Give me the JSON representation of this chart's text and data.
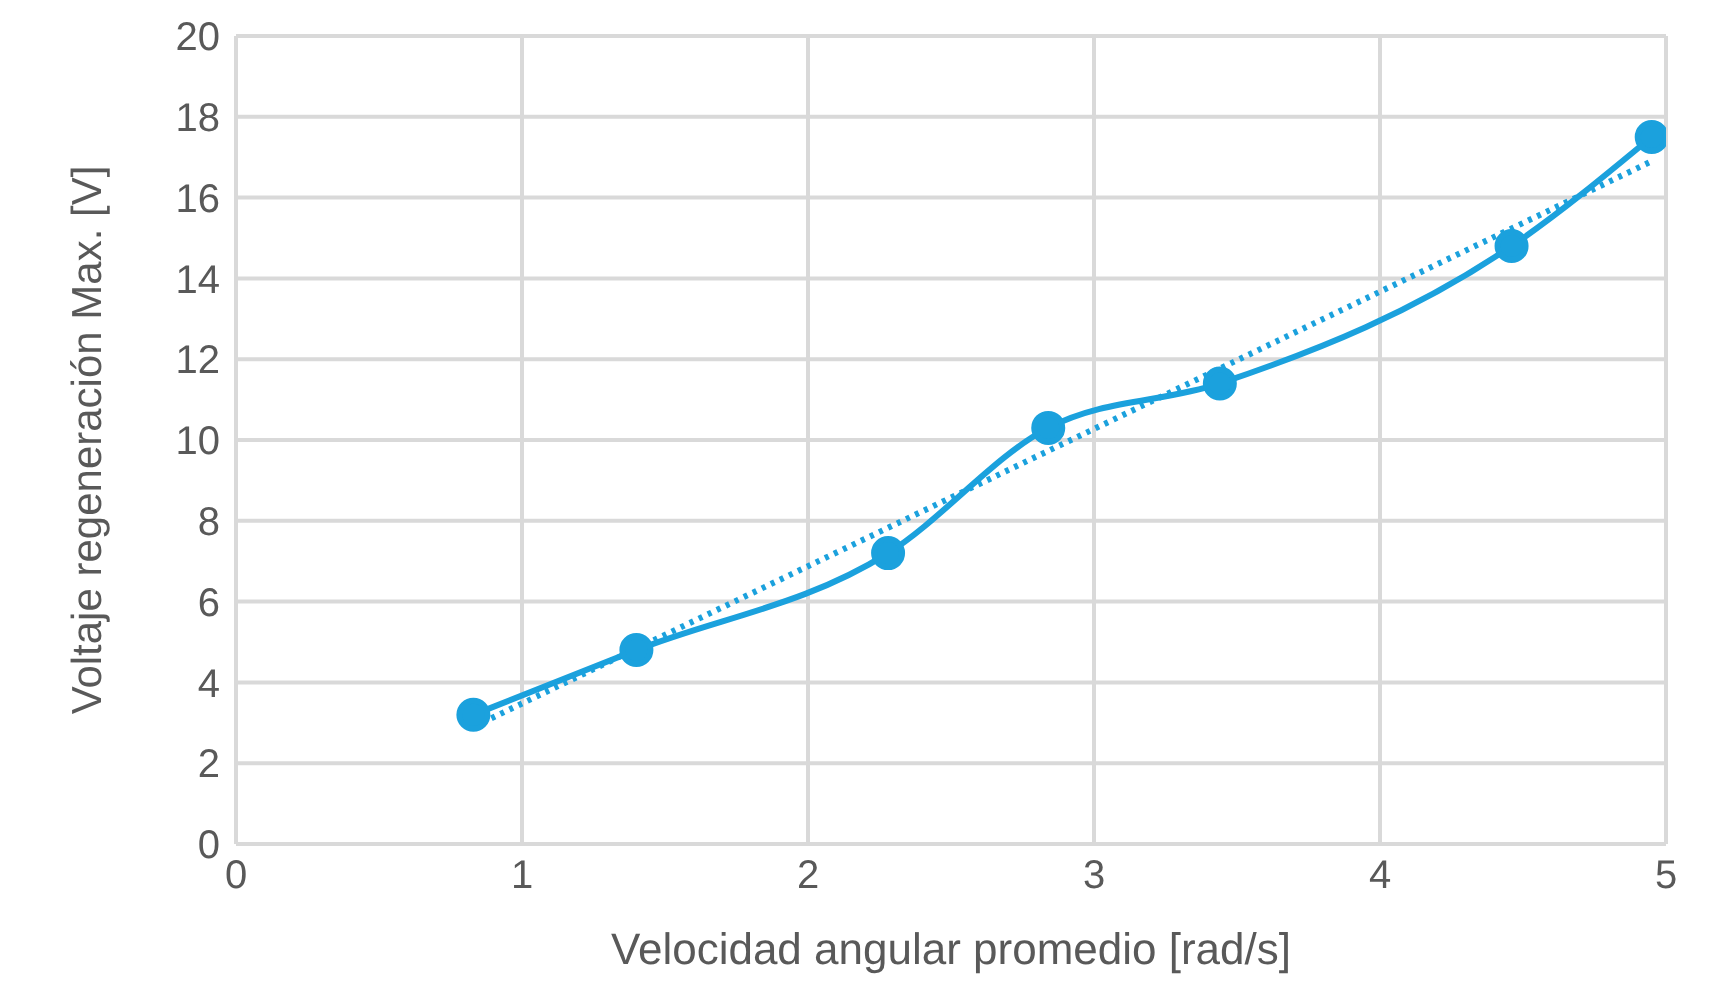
{
  "chart_data": {
    "type": "line",
    "xlabel": "Velocidad angular promedio [rad/s]",
    "ylabel": "Voltaje regeneración Max. [V]",
    "xlim": [
      0,
      5
    ],
    "xticks": [
      0,
      1,
      2,
      3,
      4,
      5
    ],
    "ylim": [
      0,
      20
    ],
    "yticks": [
      0,
      2,
      4,
      6,
      8,
      10,
      12,
      14,
      16,
      18,
      20
    ],
    "grid": true,
    "series": [
      {
        "color": "#1ba1dd",
        "marker": "circle",
        "line_style": "solid",
        "x": [
          0.83,
          1.4,
          2.28,
          2.84,
          3.44,
          4.46,
          4.95
        ],
        "values": [
          3.2,
          4.8,
          7.2,
          10.3,
          11.4,
          14.8,
          17.5
        ]
      },
      {
        "type": "line",
        "color": "#1ba1dd",
        "marker": "none",
        "line_style": "dotted",
        "x": [
          0.83,
          4.95
        ],
        "values": [
          2.9,
          16.9
        ]
      }
    ]
  }
}
